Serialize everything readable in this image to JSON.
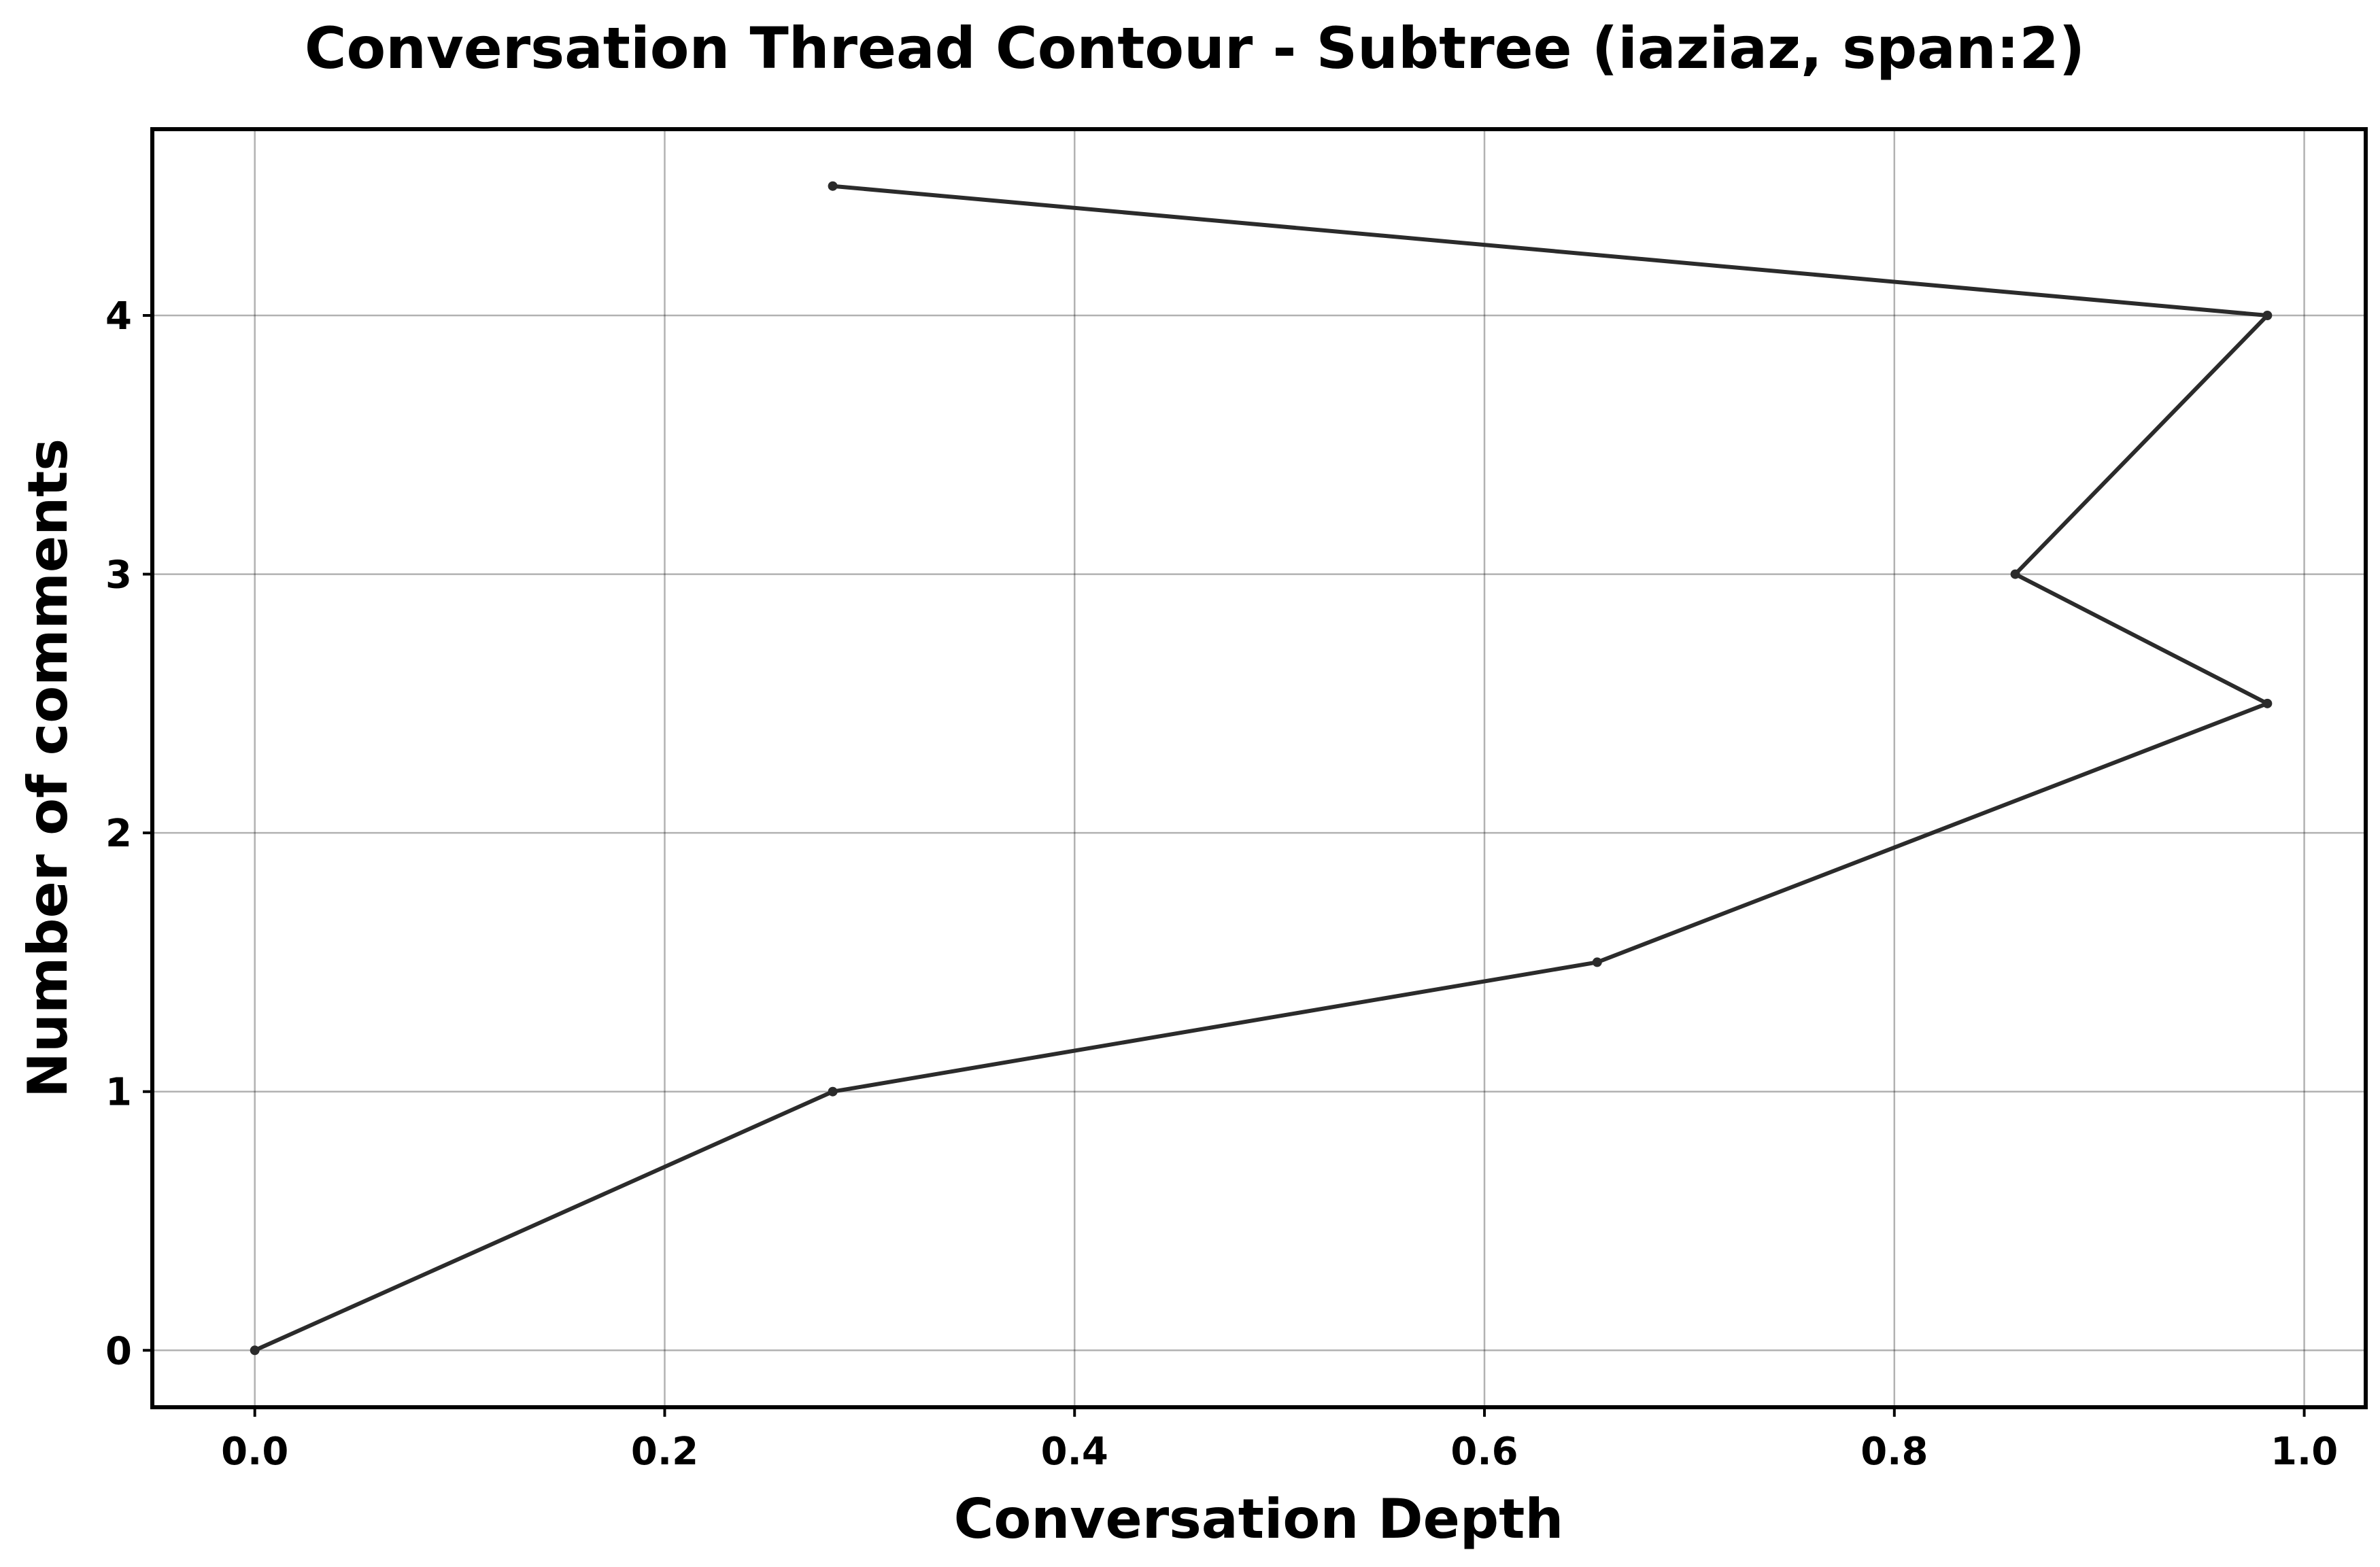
{
  "chart_data": {
    "type": "line",
    "title": "Conversation Thread Contour  - Subtree (iaziaz, span:2)",
    "xlabel": "Conversation Depth",
    "ylabel": "Number of comments",
    "xlim": [
      -0.05,
      1.03
    ],
    "ylim": [
      -0.22,
      4.72
    ],
    "xticks": [
      0.0,
      0.2,
      0.4,
      0.6,
      0.8,
      1.0
    ],
    "xtick_labels": [
      "0.0",
      "0.2",
      "0.4",
      "0.6",
      "0.8",
      "1.0"
    ],
    "yticks": [
      0,
      1,
      2,
      3,
      4
    ],
    "ytick_labels": [
      "0",
      "1",
      "2",
      "3",
      "4"
    ],
    "grid": true,
    "legend": "none",
    "series": [
      {
        "color": "#2b2b2b",
        "points": [
          {
            "x": 0.0,
            "y": 0.0
          },
          {
            "x": 0.282,
            "y": 1.0
          },
          {
            "x": 0.655,
            "y": 1.5
          },
          {
            "x": 0.982,
            "y": 2.5
          },
          {
            "x": 0.859,
            "y": 3.0
          },
          {
            "x": 0.982,
            "y": 4.0
          },
          {
            "x": 0.282,
            "y": 4.5
          }
        ]
      }
    ]
  }
}
